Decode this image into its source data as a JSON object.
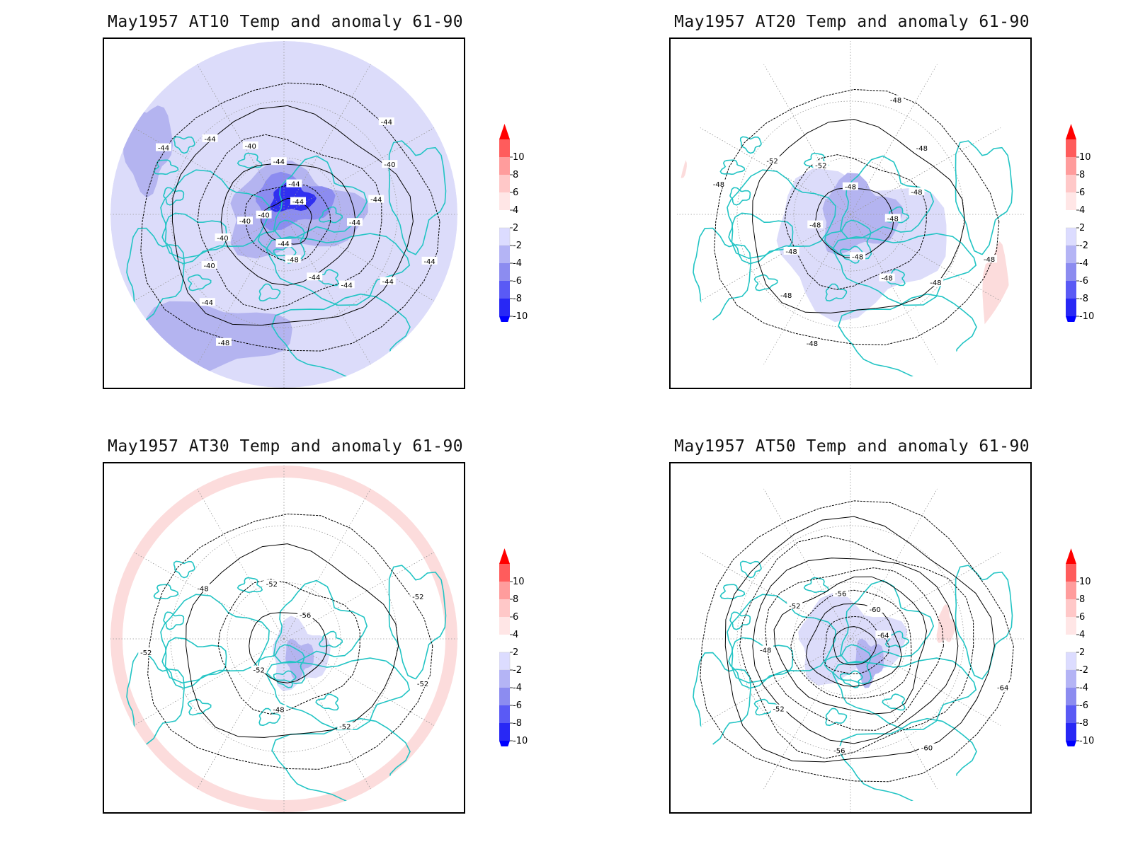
{
  "panels": [
    {
      "title": "May1957 AT10 Temp and anomaly 61-90",
      "fill_style": "cold",
      "contour_labels": [
        "-44",
        "-44",
        "-44",
        "-44",
        "-48",
        "-44",
        "-48",
        "-44",
        "-40",
        "-40",
        "-40",
        "-40",
        "-44",
        "-44",
        "-40",
        "-44",
        "-44",
        "-44",
        "-44",
        "-40",
        "-44",
        "-44"
      ]
    },
    {
      "title": "May1957 AT20 Temp and anomaly 61-90",
      "fill_style": "mixed",
      "contour_labels": [
        "-48",
        "-48",
        "-48",
        "-48",
        "-48",
        "-48",
        "-48",
        "-48",
        "-48",
        "-52",
        "-52",
        "-48",
        "-48",
        "-48",
        "-48",
        "-48"
      ]
    },
    {
      "title": "May1957 AT30 Temp and anomaly 61-90",
      "fill_style": "warm-ring",
      "contour_labels": [
        "-52",
        "-52",
        "-48",
        "-52",
        "-52",
        "-48",
        "-52",
        "-56",
        "-52"
      ]
    },
    {
      "title": "May1957 AT50 Temp and anomaly 61-90",
      "fill_style": "concentric",
      "contour_labels": [
        "-64",
        "-60",
        "-56",
        "-52",
        "-48",
        "-52",
        "-56",
        "-60",
        "-64"
      ]
    }
  ],
  "colorbar": {
    "labels": [
      "10",
      "8",
      "6",
      "4",
      "2",
      "-2",
      "-4",
      "-6",
      "-8",
      "-10"
    ],
    "colors": [
      "#ff0000",
      "#ff5c5c",
      "#ff9c9c",
      "#ffc8c8",
      "#ffe6e6",
      "#ffffff",
      "#dcdcff",
      "#b4b4f5",
      "#8c8cf0",
      "#5a5af5",
      "#2828f5",
      "#0000ff"
    ]
  },
  "colors": {
    "coastline": "#22c4c4",
    "contour": "#000000",
    "cold_light": "#dcdcfa",
    "cold_mid": "#b4b4f0",
    "cold_strong": "#8c8cf0",
    "cold_max": "#3030f0",
    "warm_light": "#fcdcdc"
  }
}
